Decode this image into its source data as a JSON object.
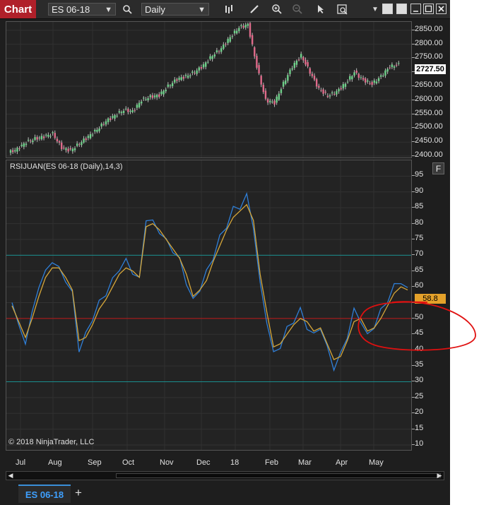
{
  "toolbar": {
    "chart_label": "Chart",
    "instrument": "ES 06-18",
    "interval": "Daily"
  },
  "price_pane": {
    "y_labels": [
      "2850.00",
      "2800.00",
      "2750.00",
      "2700.00",
      "2650.00",
      "2600.00",
      "2550.00",
      "2500.00",
      "2450.00",
      "2400.00"
    ],
    "last_price": "2727.50"
  },
  "indicator_pane": {
    "title": "RSIJUAN(ES 06-18 (Daily),14,3)",
    "f_button": "F",
    "y_labels": [
      "95",
      "90",
      "85",
      "80",
      "75",
      "70",
      "65",
      "60",
      "55",
      "50",
      "45",
      "40",
      "35",
      "30",
      "25",
      "20",
      "15",
      "10"
    ],
    "last_value": "58.8",
    "copyright": "© 2018 NinjaTrader, LLC"
  },
  "x_axis": {
    "labels": [
      "Jul",
      "Aug",
      "Sep",
      "Oct",
      "Nov",
      "Dec",
      "18",
      "Feb",
      "Mar",
      "Apr",
      "May"
    ]
  },
  "tabs": {
    "active": "ES 06-18",
    "add": "+"
  },
  "colors": {
    "accent_red": "#b0202a",
    "rsi_line": "#2f7fd8",
    "signal_line": "#d6a73a",
    "level_line": "#1a8f8f",
    "midline": "#c01818"
  },
  "chart_data": [
    {
      "type": "candlestick",
      "series": [
        {
          "name": "ES 06-18",
          "values": [
            2412,
            2425,
            2450,
            2462,
            2470,
            2480,
            2430,
            2420,
            2445,
            2470,
            2495,
            2525,
            2545,
            2565,
            2560,
            2600,
            2612,
            2618,
            2650,
            2675,
            2685,
            2700,
            2725,
            2760,
            2785,
            2825,
            2860,
            2870,
            2720,
            2600,
            2590,
            2660,
            2720,
            2760,
            2700,
            2640,
            2615,
            2630,
            2660,
            2700,
            2672,
            2658,
            2685,
            2720,
            2727.5
          ]
        }
      ],
      "ylim": [
        2390,
        2880
      ],
      "x_labels": [
        "Jul",
        "Aug",
        "Sep",
        "Oct",
        "Nov",
        "Dec",
        "18",
        "Feb",
        "Mar",
        "Apr",
        "May"
      ]
    },
    {
      "type": "line",
      "title": "RSIJUAN(ES 06-18 (Daily),14,3)",
      "ylim": [
        8,
        100
      ],
      "levels": [
        70,
        50,
        30
      ],
      "series": [
        {
          "values": [
            55,
            48,
            42,
            52,
            60,
            65,
            68,
            66,
            62,
            58,
            40,
            45,
            50,
            55,
            58,
            62,
            66,
            68,
            65,
            62,
            82,
            80,
            78,
            74,
            72,
            68,
            62,
            55,
            60,
            64,
            70,
            75,
            80,
            84,
            86,
            88,
            80,
            60,
            50,
            38,
            42,
            46,
            50,
            52,
            48,
            44,
            48,
            40,
            35,
            38,
            45,
            52,
            50,
            44,
            48,
            52,
            56,
            60,
            62,
            58.8
          ]
        },
        {
          "values": [
            54,
            49,
            44,
            50,
            57,
            63,
            66,
            66,
            63,
            59,
            43,
            44,
            48,
            53,
            56,
            60,
            64,
            66,
            65,
            63,
            79,
            80,
            78,
            75,
            72,
            69,
            64,
            57,
            59,
            62,
            68,
            73,
            78,
            82,
            84,
            86,
            81,
            64,
            52,
            41,
            42,
            45,
            48,
            50,
            49,
            46,
            47,
            42,
            37,
            38,
            43,
            49,
            50,
            46,
            47,
            50,
            54,
            58,
            60,
            59
          ]
        }
      ]
    }
  ]
}
